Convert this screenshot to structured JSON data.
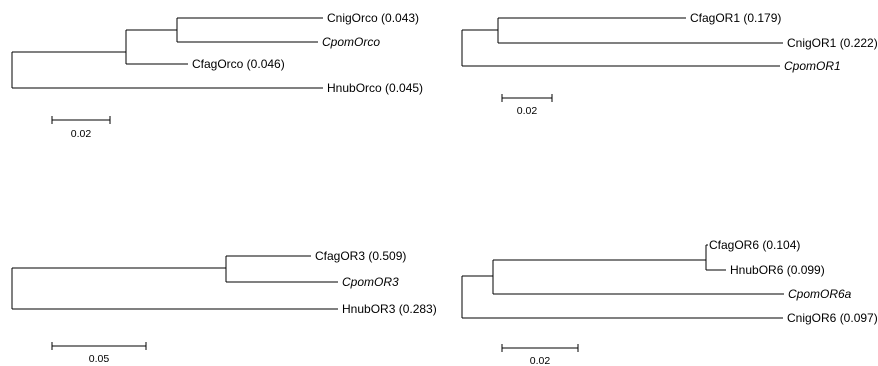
{
  "trees": [
    {
      "id": "orco",
      "tips": [
        {
          "label": "CnigOrco (0.043)",
          "italic": false
        },
        {
          "label": "CpomOrco",
          "italic": true
        },
        {
          "label": "CfagOrco (0.046)",
          "italic": false
        },
        {
          "label": "HnubOrco (0.045)",
          "italic": false
        }
      ],
      "scale_label": "0.02"
    },
    {
      "id": "or1",
      "tips": [
        {
          "label": "CfagOR1 (0.179)",
          "italic": false
        },
        {
          "label": "CnigOR1 (0.222)",
          "italic": false
        },
        {
          "label": "CpomOR1",
          "italic": true
        }
      ],
      "scale_label": "0.02"
    },
    {
      "id": "or3",
      "tips": [
        {
          "label": "CfagOR3 (0.509)",
          "italic": false
        },
        {
          "label": "CpomOR3",
          "italic": true
        },
        {
          "label": "HnubOR3 (0.283)",
          "italic": false
        }
      ],
      "scale_label": "0.05"
    },
    {
      "id": "or6",
      "tips": [
        {
          "label": "CfagOR6 (0.104)",
          "italic": false
        },
        {
          "label": "HnubOR6 (0.099)",
          "italic": false
        },
        {
          "label": "CpomOR6a",
          "italic": true
        },
        {
          "label": "CnigOR6 (0.097)",
          "italic": false
        }
      ],
      "scale_label": "0.02"
    }
  ]
}
